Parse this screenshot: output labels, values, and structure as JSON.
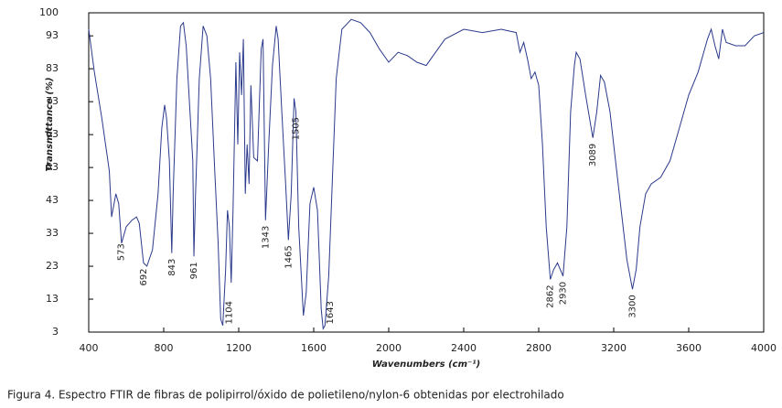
{
  "chart_data": {
    "type": "line",
    "caption": "Figura 4. Espectro FTIR de fibras de polipirrol/óxido de polietileno/nylon-6 obtenidas por electrohilado",
    "x_label": "Wavenumbers (cm⁻¹)",
    "y_label": "Transmittance (%)",
    "color": "#2b3a8c",
    "xlim": [
      400,
      4000
    ],
    "xticks": [
      400,
      800,
      1200,
      1600,
      2000,
      2400,
      2800,
      3200,
      3600,
      4000
    ],
    "ylim": [
      3,
      100
    ],
    "yticks": [
      3,
      13,
      23,
      33,
      43,
      53,
      63,
      73,
      83,
      93,
      100
    ],
    "peaks": [
      573,
      692,
      843,
      961,
      1104,
      1343,
      1465,
      1505,
      1643,
      2862,
      2930,
      3089,
      3300
    ],
    "x": [
      400,
      430,
      470,
      510,
      522,
      545,
      560,
      575,
      600,
      630,
      655,
      670,
      692,
      710,
      740,
      770,
      790,
      805,
      815,
      830,
      843,
      850,
      870,
      890,
      905,
      920,
      940,
      955,
      961,
      970,
      990,
      1010,
      1030,
      1050,
      1070,
      1090,
      1104,
      1115,
      1130,
      1140,
      1150,
      1160,
      1170,
      1185,
      1195,
      1205,
      1215,
      1225,
      1235,
      1245,
      1255,
      1265,
      1280,
      1300,
      1320,
      1330,
      1343,
      1360,
      1380,
      1400,
      1410,
      1430,
      1450,
      1465,
      1480,
      1495,
      1505,
      1520,
      1545,
      1560,
      1580,
      1600,
      1620,
      1640,
      1650,
      1660,
      1680,
      1700,
      1720,
      1750,
      1800,
      1850,
      1900,
      1950,
      2000,
      2050,
      2100,
      2150,
      2200,
      2250,
      2300,
      2400,
      2500,
      2600,
      2680,
      2700,
      2720,
      2740,
      2760,
      2780,
      2800,
      2820,
      2840,
      2862,
      2880,
      2900,
      2930,
      2950,
      2970,
      2990,
      3000,
      3020,
      3050,
      3089,
      3110,
      3130,
      3150,
      3180,
      3210,
      3240,
      3270,
      3300,
      3320,
      3340,
      3370,
      3400,
      3450,
      3500,
      3550,
      3600,
      3650,
      3700,
      3720,
      3740,
      3760,
      3780,
      3800,
      3850,
      3900,
      3950,
      4000
    ],
    "values": [
      95,
      82,
      68,
      52,
      38,
      45,
      42,
      30,
      35,
      37,
      38,
      36,
      24,
      23,
      28,
      45,
      65,
      72,
      68,
      55,
      27,
      45,
      80,
      96,
      97,
      90,
      70,
      55,
      26,
      45,
      80,
      96,
      93,
      80,
      55,
      30,
      7,
      5,
      22,
      40,
      35,
      18,
      40,
      85,
      60,
      88,
      75,
      92,
      45,
      60,
      48,
      78,
      56,
      55,
      89,
      92,
      37,
      60,
      84,
      96,
      92,
      70,
      48,
      31,
      45,
      74,
      70,
      35,
      8,
      15,
      42,
      47,
      40,
      10,
      4,
      5,
      20,
      50,
      80,
      95,
      98,
      97,
      94,
      89,
      85,
      88,
      87,
      85,
      84,
      88,
      92,
      95,
      94,
      95,
      94,
      88,
      91,
      86,
      80,
      82,
      78,
      60,
      35,
      19,
      22,
      24,
      20,
      35,
      70,
      84,
      88,
      86,
      75,
      62,
      70,
      81,
      79,
      70,
      55,
      40,
      25,
      16,
      22,
      35,
      45,
      48,
      50,
      55,
      65,
      75,
      82,
      92,
      95,
      90,
      86,
      95,
      91,
      90,
      90,
      93,
      94
    ]
  }
}
